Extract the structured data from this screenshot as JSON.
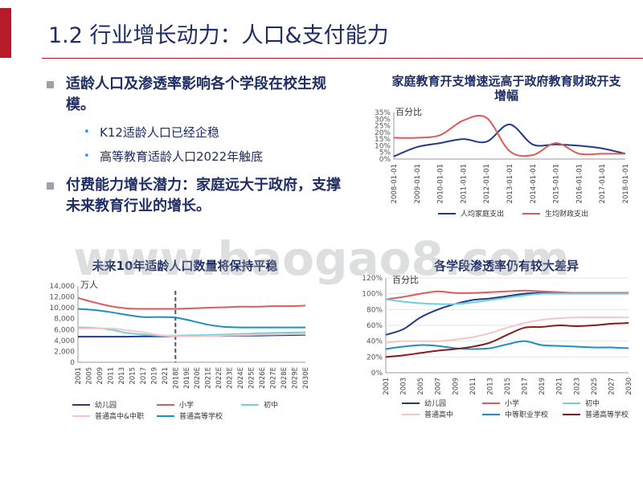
{
  "page": {
    "title": "1.2 行业增长动力：人口&支付能力",
    "accent_color": "#b71a2a",
    "title_color": "#1f2d66",
    "watermark": "www.baogao8.com"
  },
  "bullets": [
    {
      "text": "适龄人口及渗透率影响各个学段在校生规模。",
      "level": 1
    },
    {
      "text": "K12适龄人口已经企稳",
      "level": 2
    },
    {
      "text": "高等教育适龄人口2022年触底",
      "level": 2
    },
    {
      "text": "付费能力增长潜力：家庭远大于政府，支撑未来教育行业的增长。",
      "level": 1
    }
  ],
  "chart_data": [
    {
      "type": "line",
      "title": "家庭教育开支增速远高于政府教育财政开支增幅",
      "unit": "百分比",
      "x": [
        "2008-01-01",
        "2009-01-01",
        "2010-01-01",
        "2011-01-01",
        "2012-01-01",
        "2013-01-01",
        "2014-01-01",
        "2015-01-01",
        "2016-01-01",
        "2017-01-01",
        "2018-01-01"
      ],
      "ylim": [
        0,
        35
      ],
      "yticks": [
        "0%",
        "5%",
        "10%",
        "15%",
        "20%",
        "25%",
        "30%",
        "35%"
      ],
      "legend_position": "bottom",
      "series": [
        {
          "name": "人均家庭支出",
          "color": "#1f3c88",
          "values": [
            2,
            9,
            12,
            15,
            13,
            26,
            11,
            11,
            10,
            8,
            4
          ]
        },
        {
          "name": "生均财政支出",
          "color": "#e05a5a",
          "values": [
            16,
            16,
            18,
            29,
            31,
            6,
            3,
            12,
            4,
            4,
            4
          ]
        }
      ]
    },
    {
      "type": "line",
      "title": "未来10年适龄人口数量将保持平稳",
      "unit": "万人",
      "x": [
        "2001",
        "2003",
        "2005",
        "2007",
        "2009",
        "2011",
        "2013",
        "2015",
        "2017",
        "2019",
        "2021",
        "2023",
        "2025",
        "2027",
        "2029"
      ],
      "xticks": [
        "2001",
        "2005",
        "2009",
        "2011",
        "2013",
        "2015",
        "2017",
        "2019",
        "2021",
        "2018E",
        "2019E",
        "2020E",
        "2021E",
        "2022E",
        "2023E",
        "2024E",
        "2025E",
        "2026E",
        "2027E",
        "2028E",
        "2029E",
        "2030E"
      ],
      "ylim": [
        0,
        14000
      ],
      "yticks": [
        "0",
        "2,000",
        "4,000",
        "6,000",
        "8,000",
        "10,000",
        "12,000",
        "14,000"
      ],
      "annotations": [
        "dashed vertical line at 2018E"
      ],
      "legend_position": "bottom",
      "series": [
        {
          "name": "幼儿园",
          "color": "#1f3c88",
          "values": [
            4700,
            4700,
            4700,
            4700,
            4750,
            4750,
            4800,
            4900,
            4850,
            4850,
            4900,
            4900,
            4950,
            5000,
            5050
          ]
        },
        {
          "name": "小学",
          "color": "#e05a5a",
          "values": [
            11800,
            11000,
            10300,
            9900,
            9800,
            9800,
            9800,
            9900,
            10000,
            10100,
            10200,
            10200,
            10300,
            10300,
            10400
          ]
        },
        {
          "name": "初中",
          "color": "#6fd0e0",
          "values": [
            6400,
            6300,
            6000,
            5400,
            5100,
            4900,
            4900,
            4950,
            5000,
            5100,
            5200,
            5300,
            5400,
            5450,
            5500
          ]
        },
        {
          "name": "普通高中&中职",
          "color": "#f2c7c7",
          "values": [
            6200,
            6200,
            6200,
            5900,
            5500,
            5000,
            4800,
            4750,
            4800,
            4900,
            5000,
            5050,
            5100,
            5150,
            5200
          ]
        },
        {
          "name": "普通高等学校",
          "color": "#1c8fc4",
          "values": [
            9800,
            9600,
            9200,
            8700,
            8300,
            8300,
            8200,
            7600,
            6900,
            6500,
            6400,
            6400,
            6400,
            6400,
            6400
          ]
        }
      ]
    },
    {
      "type": "line",
      "title": "各学段渗透率仍有较大差异",
      "unit": "百分比",
      "x": [
        "2001",
        "2003",
        "2005",
        "2007",
        "2009",
        "2011",
        "2013",
        "2015",
        "2017",
        "2019",
        "2021",
        "2023",
        "2025",
        "2027",
        "2030"
      ],
      "ylim": [
        0,
        120
      ],
      "yticks": [
        "0%",
        "20%",
        "40%",
        "60%",
        "80%",
        "100%",
        "120%"
      ],
      "legend_position": "bottom",
      "series": [
        {
          "name": "幼儿园",
          "color": "#1f3c88",
          "values": [
            48,
            55,
            70,
            80,
            87,
            92,
            94,
            97,
            100,
            101,
            101,
            101,
            101,
            101,
            101
          ]
        },
        {
          "name": "小学",
          "color": "#e05a5a",
          "values": [
            93,
            96,
            100,
            103,
            101,
            101,
            102,
            103,
            104,
            103,
            102,
            101,
            101,
            101,
            101
          ]
        },
        {
          "name": "初中",
          "color": "#6fd0e0",
          "values": [
            93,
            90,
            88,
            87,
            87,
            89,
            92,
            95,
            98,
            100,
            100,
            100,
            100,
            100,
            100
          ]
        },
        {
          "name": "普通高中",
          "color": "#f2c7c7",
          "values": [
            38,
            40,
            40,
            40,
            42,
            45,
            50,
            57,
            63,
            67,
            69,
            70,
            70,
            70,
            70
          ]
        },
        {
          "name": "中等职业学校",
          "color": "#1c8fc4",
          "values": [
            30,
            33,
            35,
            34,
            31,
            30,
            31,
            36,
            40,
            35,
            34,
            33,
            32,
            32,
            31
          ]
        },
        {
          "name": "普通高等学校",
          "color": "#8b1a1a",
          "values": [
            20,
            22,
            25,
            28,
            30,
            33,
            38,
            48,
            57,
            58,
            60,
            59,
            60,
            62,
            63
          ]
        }
      ]
    }
  ]
}
